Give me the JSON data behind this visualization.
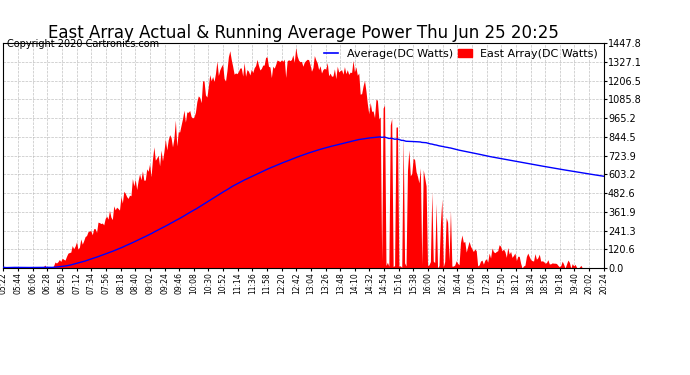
{
  "title": "East Array Actual & Running Average Power Thu Jun 25 20:25",
  "copyright": "Copyright 2020 Cartronics.com",
  "legend_avg": "Average(DC Watts)",
  "legend_east": "East Array(DC Watts)",
  "y_ticks": [
    0.0,
    120.6,
    241.3,
    361.9,
    482.6,
    603.2,
    723.9,
    844.5,
    965.2,
    1085.8,
    1206.5,
    1327.1,
    1447.8
  ],
  "ymax": 1447.8,
  "ymin": 0.0,
  "fill_color": "#FF0000",
  "avg_line_color": "#0000FF",
  "background_color": "#FFFFFF",
  "grid_color": "#BBBBBB",
  "x_tick_labels": [
    "05:22",
    "05:44",
    "06:06",
    "06:28",
    "06:50",
    "07:12",
    "07:34",
    "07:56",
    "08:18",
    "08:40",
    "09:02",
    "09:24",
    "09:46",
    "10:08",
    "10:30",
    "10:52",
    "11:14",
    "11:36",
    "11:58",
    "12:20",
    "12:42",
    "13:04",
    "13:26",
    "13:48",
    "14:10",
    "14:32",
    "14:54",
    "15:16",
    "15:38",
    "16:00",
    "16:22",
    "16:44",
    "17:06",
    "17:28",
    "17:50",
    "18:12",
    "18:34",
    "18:56",
    "19:18",
    "19:40",
    "20:02",
    "20:24"
  ],
  "n_points": 420,
  "title_fontsize": 12,
  "copyright_fontsize": 7,
  "legend_fontsize": 8
}
